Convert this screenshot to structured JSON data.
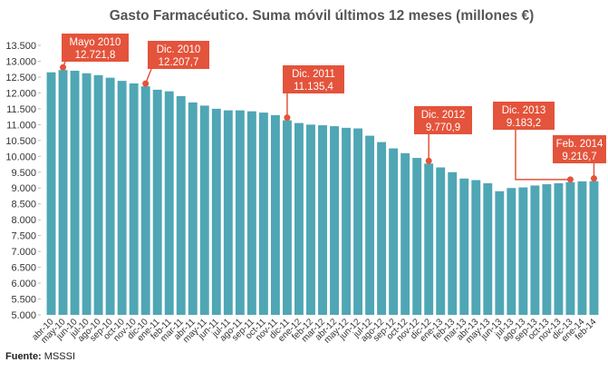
{
  "chart_data": {
    "type": "bar",
    "title": "Gasto Farmacéutico. Suma móvil últimos 12 meses (millones €)",
    "categories": [
      "abr-10",
      "may-10",
      "jun-10",
      "jul-10",
      "ago-10",
      "sep-10",
      "oct-10",
      "nov-10",
      "dic-10",
      "ene-11",
      "feb-11",
      "mar-11",
      "abr-11",
      "may-11",
      "jun-11",
      "jul-11",
      "ago-11",
      "sep-11",
      "oct-11",
      "nov-11",
      "dic-11",
      "ene-12",
      "feb-12",
      "mar-12",
      "abr-12",
      "may-12",
      "jun-12",
      "jul-12",
      "ago-12",
      "sep-12",
      "oct-12",
      "nov-12",
      "dic-12",
      "ene-13",
      "feb-13",
      "mar-13",
      "abr-13",
      "may-13",
      "jun-13",
      "jul-13",
      "ago-13",
      "sep-13",
      "oct-13",
      "nov-13",
      "dic-13",
      "ene-14",
      "feb-14"
    ],
    "values": [
      12650,
      12721.8,
      12700,
      12620,
      12560,
      12480,
      12380,
      12300,
      12207.7,
      12100,
      12050,
      11900,
      11700,
      11600,
      11500,
      11450,
      11450,
      11420,
      11380,
      11300,
      11135.4,
      11050,
      11000,
      10980,
      10950,
      10900,
      10880,
      10650,
      10450,
      10250,
      10100,
      9950,
      9770.9,
      9650,
      9500,
      9300,
      9250,
      9150,
      8900,
      9000,
      9020,
      9080,
      9120,
      9150,
      9183.2,
      9210,
      9216.7
    ],
    "color": "#4fa6b4",
    "ylim": [
      5000,
      13500
    ],
    "yticks": [
      {
        "value": 5000,
        "label": "5.000"
      },
      {
        "value": 5500,
        "label": "5.500"
      },
      {
        "value": 6000,
        "label": "6.000"
      },
      {
        "value": 6500,
        "label": "6.500"
      },
      {
        "value": 7000,
        "label": "7.000"
      },
      {
        "value": 7500,
        "label": "7.500"
      },
      {
        "value": 8000,
        "label": "8.000"
      },
      {
        "value": 8500,
        "label": "8.500"
      },
      {
        "value": 9000,
        "label": "9.000"
      },
      {
        "value": 9500,
        "label": "9.500"
      },
      {
        "value": 10000,
        "label": "10.000"
      },
      {
        "value": 10500,
        "label": "10.500"
      },
      {
        "value": 11000,
        "label": "11.000"
      },
      {
        "value": 11500,
        "label": "11.500"
      },
      {
        "value": 12000,
        "label": "12.000"
      },
      {
        "value": 12500,
        "label": "12.500"
      },
      {
        "value": 13000,
        "label": "13.000"
      },
      {
        "value": 13500,
        "label": "13.500"
      }
    ],
    "annotations": [
      {
        "label": "Mayo 2010",
        "value_label": "12.721,8"
      },
      {
        "label": "Dic. 2010",
        "value_label": "12.207,7"
      },
      {
        "label": "Dic. 2011",
        "value_label": "11.135,4"
      },
      {
        "label": "Dic. 2012",
        "value_label": "9.770,9"
      },
      {
        "label": "Dic. 2013",
        "value_label": "9.183,2"
      },
      {
        "label": "Feb. 2014",
        "value_label": "9.216,7"
      }
    ],
    "annotation_color": "#e4533b",
    "source": {
      "label": "Fuente:",
      "text": "MSSSI"
    }
  }
}
